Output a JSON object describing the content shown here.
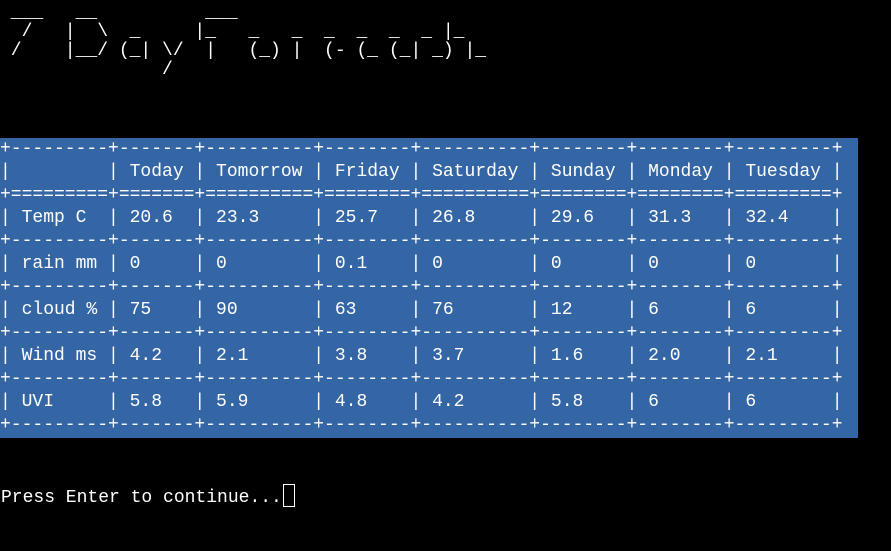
{
  "banner": {
    "ascii_art": " ___   __          ___\n  /   |  \\  _     |_   _   _  _  _  _  _ |_\n /    |__/ (_| \\/  |   (_) |  (- (_ (_| _) |_\n               /"
  },
  "forecast_table": {
    "columns": [
      "",
      "Today",
      "Tomorrow",
      "Friday",
      "Saturday",
      "Sunday",
      "Monday",
      "Tuesday"
    ],
    "rows": [
      {
        "label": "Temp C",
        "values": [
          "20.6",
          "23.3",
          "25.7",
          "26.8",
          "29.6",
          "31.3",
          "32.4"
        ]
      },
      {
        "label": "rain mm",
        "values": [
          "0",
          "0",
          "0.1",
          "0",
          "0",
          "0",
          "0"
        ]
      },
      {
        "label": "cloud %",
        "values": [
          "75",
          "90",
          "63",
          "76",
          "12",
          "6",
          "6"
        ]
      },
      {
        "label": "Wind ms",
        "values": [
          "4.2",
          "2.1",
          "3.8",
          "3.7",
          "1.6",
          "2.0",
          "2.1"
        ]
      },
      {
        "label": "UVI",
        "values": [
          "5.8",
          "5.9",
          "4.8",
          "4.2",
          "5.8",
          "6",
          "6"
        ]
      }
    ]
  },
  "prompt": {
    "text": "Press Enter to continue..."
  },
  "colors": {
    "background": "#000000",
    "table_background": "#3465a4",
    "text": "#ffffff"
  }
}
